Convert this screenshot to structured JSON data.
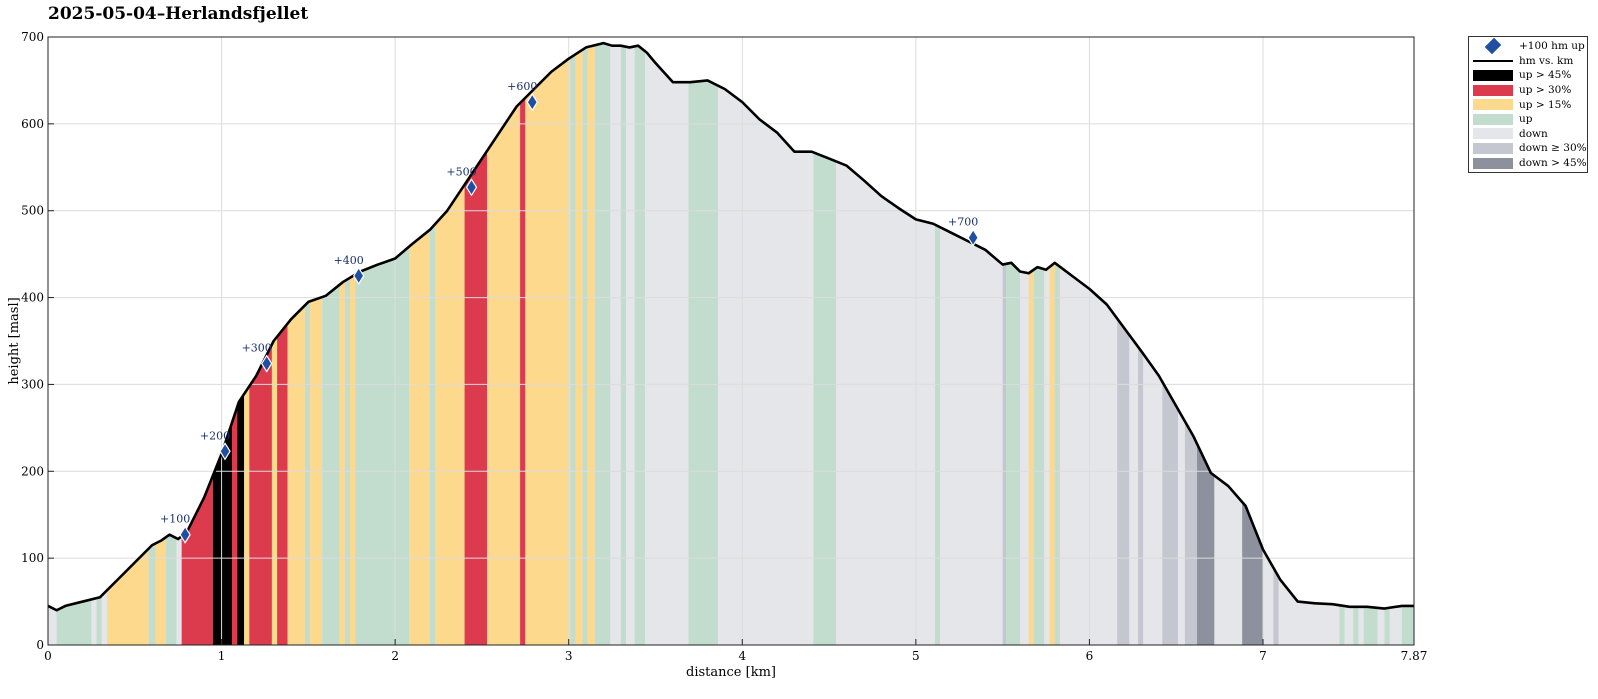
{
  "chart_data": {
    "type": "area",
    "title": "2025-05-04–Herlandsfjellet",
    "xlabel": "distance [km]",
    "ylabel": "height [masl]",
    "xlim": [
      0,
      7.87
    ],
    "ylim": [
      0,
      700
    ],
    "x_ticks": [
      0,
      1,
      2,
      3,
      4,
      5,
      6,
      7,
      7.87
    ],
    "x_tick_labels": [
      "0",
      "1",
      "2",
      "3",
      "4",
      "5",
      "6",
      "7",
      "7.87"
    ],
    "y_ticks": [
      0,
      100,
      200,
      300,
      400,
      500,
      600,
      700
    ],
    "y_tick_labels": [
      "0",
      "100",
      "200",
      "300",
      "400",
      "500",
      "600",
      "700"
    ],
    "grid": true,
    "legend_position": "outside-top-right",
    "profile": {
      "name": "hm vs. km",
      "x": [
        0,
        0.05,
        0.1,
        0.2,
        0.3,
        0.4,
        0.5,
        0.6,
        0.65,
        0.7,
        0.75,
        0.8,
        0.9,
        1.0,
        1.1,
        1.2,
        1.3,
        1.4,
        1.5,
        1.6,
        1.7,
        1.8,
        1.9,
        2.0,
        2.1,
        2.2,
        2.3,
        2.4,
        2.5,
        2.6,
        2.7,
        2.8,
        2.9,
        3.0,
        3.1,
        3.2,
        3.25,
        3.3,
        3.35,
        3.4,
        3.45,
        3.5,
        3.6,
        3.7,
        3.8,
        3.9,
        4.0,
        4.1,
        4.2,
        4.3,
        4.4,
        4.5,
        4.6,
        4.7,
        4.8,
        4.9,
        5.0,
        5.1,
        5.2,
        5.3,
        5.4,
        5.5,
        5.55,
        5.6,
        5.65,
        5.7,
        5.75,
        5.8,
        5.9,
        6.0,
        6.1,
        6.2,
        6.3,
        6.4,
        6.5,
        6.6,
        6.7,
        6.8,
        6.9,
        7.0,
        7.1,
        7.2,
        7.3,
        7.4,
        7.5,
        7.6,
        7.7,
        7.8,
        7.87
      ],
      "y": [
        45,
        40,
        45,
        50,
        55,
        75,
        95,
        115,
        120,
        127,
        122,
        130,
        170,
        220,
        280,
        310,
        350,
        375,
        395,
        402,
        418,
        430,
        438,
        445,
        462,
        478,
        500,
        530,
        560,
        590,
        620,
        640,
        660,
        675,
        688,
        693,
        690,
        690,
        688,
        690,
        682,
        670,
        648,
        648,
        650,
        640,
        625,
        605,
        590,
        568,
        568,
        560,
        552,
        535,
        517,
        503,
        490,
        485,
        475,
        465,
        455,
        438,
        440,
        430,
        428,
        435,
        432,
        440,
        425,
        410,
        392,
        365,
        338,
        310,
        275,
        240,
        198,
        183,
        160,
        110,
        75,
        50,
        48,
        47,
        44,
        44,
        42,
        45,
        45
      ]
    },
    "segments": [
      {
        "x0": 0.05,
        "x1": 0.25,
        "cls": "up"
      },
      {
        "x0": 0.25,
        "x1": 0.28,
        "cls": "down"
      },
      {
        "x0": 0.28,
        "x1": 0.31,
        "cls": "up"
      },
      {
        "x0": 0.31,
        "x1": 0.34,
        "cls": "down"
      },
      {
        "x0": 0.34,
        "x1": 0.58,
        "cls": "up15"
      },
      {
        "x0": 0.58,
        "x1": 0.62,
        "cls": "up"
      },
      {
        "x0": 0.62,
        "x1": 0.68,
        "cls": "up15"
      },
      {
        "x0": 0.68,
        "x1": 0.74,
        "cls": "up"
      },
      {
        "x0": 0.74,
        "x1": 0.77,
        "cls": "down"
      },
      {
        "x0": 0.77,
        "x1": 0.95,
        "cls": "up30"
      },
      {
        "x0": 0.95,
        "x1": 1.06,
        "cls": "up45"
      },
      {
        "x0": 1.06,
        "x1": 1.09,
        "cls": "up30"
      },
      {
        "x0": 1.09,
        "x1": 1.13,
        "cls": "up45"
      },
      {
        "x0": 1.13,
        "x1": 1.16,
        "cls": "up15"
      },
      {
        "x0": 1.16,
        "x1": 1.29,
        "cls": "up30"
      },
      {
        "x0": 1.29,
        "x1": 1.32,
        "cls": "up15"
      },
      {
        "x0": 1.32,
        "x1": 1.38,
        "cls": "up30"
      },
      {
        "x0": 1.38,
        "x1": 1.48,
        "cls": "up15"
      },
      {
        "x0": 1.48,
        "x1": 1.51,
        "cls": "up"
      },
      {
        "x0": 1.51,
        "x1": 1.58,
        "cls": "up15"
      },
      {
        "x0": 1.58,
        "x1": 1.68,
        "cls": "up"
      },
      {
        "x0": 1.68,
        "x1": 1.71,
        "cls": "up15"
      },
      {
        "x0": 1.71,
        "x1": 1.74,
        "cls": "up"
      },
      {
        "x0": 1.74,
        "x1": 1.77,
        "cls": "up15"
      },
      {
        "x0": 1.77,
        "x1": 2.08,
        "cls": "up"
      },
      {
        "x0": 2.08,
        "x1": 2.2,
        "cls": "up15"
      },
      {
        "x0": 2.2,
        "x1": 2.23,
        "cls": "up"
      },
      {
        "x0": 2.23,
        "x1": 2.4,
        "cls": "up15"
      },
      {
        "x0": 2.4,
        "x1": 2.53,
        "cls": "up30"
      },
      {
        "x0": 2.53,
        "x1": 2.72,
        "cls": "up15"
      },
      {
        "x0": 2.72,
        "x1": 2.75,
        "cls": "up30"
      },
      {
        "x0": 2.75,
        "x1": 3.01,
        "cls": "up15"
      },
      {
        "x0": 3.01,
        "x1": 3.04,
        "cls": "up"
      },
      {
        "x0": 3.04,
        "x1": 3.08,
        "cls": "up15"
      },
      {
        "x0": 3.08,
        "x1": 3.11,
        "cls": "up"
      },
      {
        "x0": 3.11,
        "x1": 3.15,
        "cls": "up15"
      },
      {
        "x0": 3.15,
        "x1": 3.24,
        "cls": "up"
      },
      {
        "x0": 3.24,
        "x1": 3.3,
        "cls": "down"
      },
      {
        "x0": 3.3,
        "x1": 3.33,
        "cls": "up"
      },
      {
        "x0": 3.33,
        "x1": 3.38,
        "cls": "down"
      },
      {
        "x0": 3.38,
        "x1": 3.44,
        "cls": "up"
      },
      {
        "x0": 3.44,
        "x1": 3.69,
        "cls": "down"
      },
      {
        "x0": 3.69,
        "x1": 3.86,
        "cls": "up"
      },
      {
        "x0": 3.86,
        "x1": 4.41,
        "cls": "down"
      },
      {
        "x0": 4.41,
        "x1": 4.54,
        "cls": "up"
      },
      {
        "x0": 4.54,
        "x1": 5.11,
        "cls": "down"
      },
      {
        "x0": 5.11,
        "x1": 5.14,
        "cls": "up"
      },
      {
        "x0": 5.14,
        "x1": 5.5,
        "cls": "down"
      },
      {
        "x0": 5.5,
        "x1": 5.52,
        "cls": "down30"
      },
      {
        "x0": 5.52,
        "x1": 5.6,
        "cls": "up"
      },
      {
        "x0": 5.6,
        "x1": 5.65,
        "cls": "down"
      },
      {
        "x0": 5.65,
        "x1": 5.68,
        "cls": "up15"
      },
      {
        "x0": 5.68,
        "x1": 5.74,
        "cls": "up"
      },
      {
        "x0": 5.74,
        "x1": 5.77,
        "cls": "down"
      },
      {
        "x0": 5.77,
        "x1": 5.8,
        "cls": "up15"
      },
      {
        "x0": 5.8,
        "x1": 5.83,
        "cls": "up"
      },
      {
        "x0": 5.83,
        "x1": 6.16,
        "cls": "down"
      },
      {
        "x0": 6.16,
        "x1": 6.23,
        "cls": "down30"
      },
      {
        "x0": 6.23,
        "x1": 6.28,
        "cls": "down"
      },
      {
        "x0": 6.28,
        "x1": 6.31,
        "cls": "down30"
      },
      {
        "x0": 6.31,
        "x1": 6.42,
        "cls": "down"
      },
      {
        "x0": 6.42,
        "x1": 6.51,
        "cls": "down30"
      },
      {
        "x0": 6.51,
        "x1": 6.55,
        "cls": "down"
      },
      {
        "x0": 6.55,
        "x1": 6.62,
        "cls": "down30"
      },
      {
        "x0": 6.62,
        "x1": 6.72,
        "cls": "down45"
      },
      {
        "x0": 6.72,
        "x1": 6.88,
        "cls": "down"
      },
      {
        "x0": 6.88,
        "x1": 7.0,
        "cls": "down45"
      },
      {
        "x0": 7.0,
        "x1": 7.06,
        "cls": "down"
      },
      {
        "x0": 7.06,
        "x1": 7.09,
        "cls": "down30"
      },
      {
        "x0": 7.09,
        "x1": 7.44,
        "cls": "down"
      },
      {
        "x0": 7.44,
        "x1": 7.47,
        "cls": "up"
      },
      {
        "x0": 7.47,
        "x1": 7.52,
        "cls": "down"
      },
      {
        "x0": 7.52,
        "x1": 7.55,
        "cls": "up"
      },
      {
        "x0": 7.55,
        "x1": 7.58,
        "cls": "down"
      },
      {
        "x0": 7.58,
        "x1": 7.66,
        "cls": "up"
      },
      {
        "x0": 7.66,
        "x1": 7.7,
        "cls": "down"
      },
      {
        "x0": 7.7,
        "x1": 7.73,
        "cls": "up"
      },
      {
        "x0": 7.73,
        "x1": 7.8,
        "cls": "down"
      },
      {
        "x0": 7.8,
        "x1": 7.87,
        "cls": "up"
      }
    ],
    "markers": {
      "name": "+100 hm up",
      "points": [
        {
          "x": 0.79,
          "y": 127,
          "label": "+100"
        },
        {
          "x": 1.02,
          "y": 223,
          "label": "+200"
        },
        {
          "x": 1.26,
          "y": 324,
          "label": "+300"
        },
        {
          "x": 1.79,
          "y": 425,
          "label": "+400"
        },
        {
          "x": 2.44,
          "y": 527,
          "label": "+500"
        },
        {
          "x": 2.79,
          "y": 625,
          "label": "+600"
        },
        {
          "x": 5.33,
          "y": 469,
          "label": "+700"
        }
      ]
    },
    "legend": [
      {
        "key": "marker",
        "label": "+100 hm up"
      },
      {
        "key": "line",
        "label": "hm vs. km"
      },
      {
        "key": "up45",
        "label": "up > 45%"
      },
      {
        "key": "up30",
        "label": "up > 30%"
      },
      {
        "key": "up15",
        "label": "up > 15%"
      },
      {
        "key": "up",
        "label": "up"
      },
      {
        "key": "down",
        "label": "down"
      },
      {
        "key": "down30",
        "label": "down ≥ 30%"
      },
      {
        "key": "down45",
        "label": "down > 45%"
      }
    ],
    "colors": {
      "up45": "#000000",
      "up30": "#dc3b4e",
      "up15": "#fdd98e",
      "up": "#c2ddcd",
      "down": "#e5e6ea",
      "down30": "#c5c7d0",
      "down45": "#8c919d",
      "line": "#000000",
      "marker": "#1f4ea3",
      "grid": "#dcdcdc"
    }
  }
}
